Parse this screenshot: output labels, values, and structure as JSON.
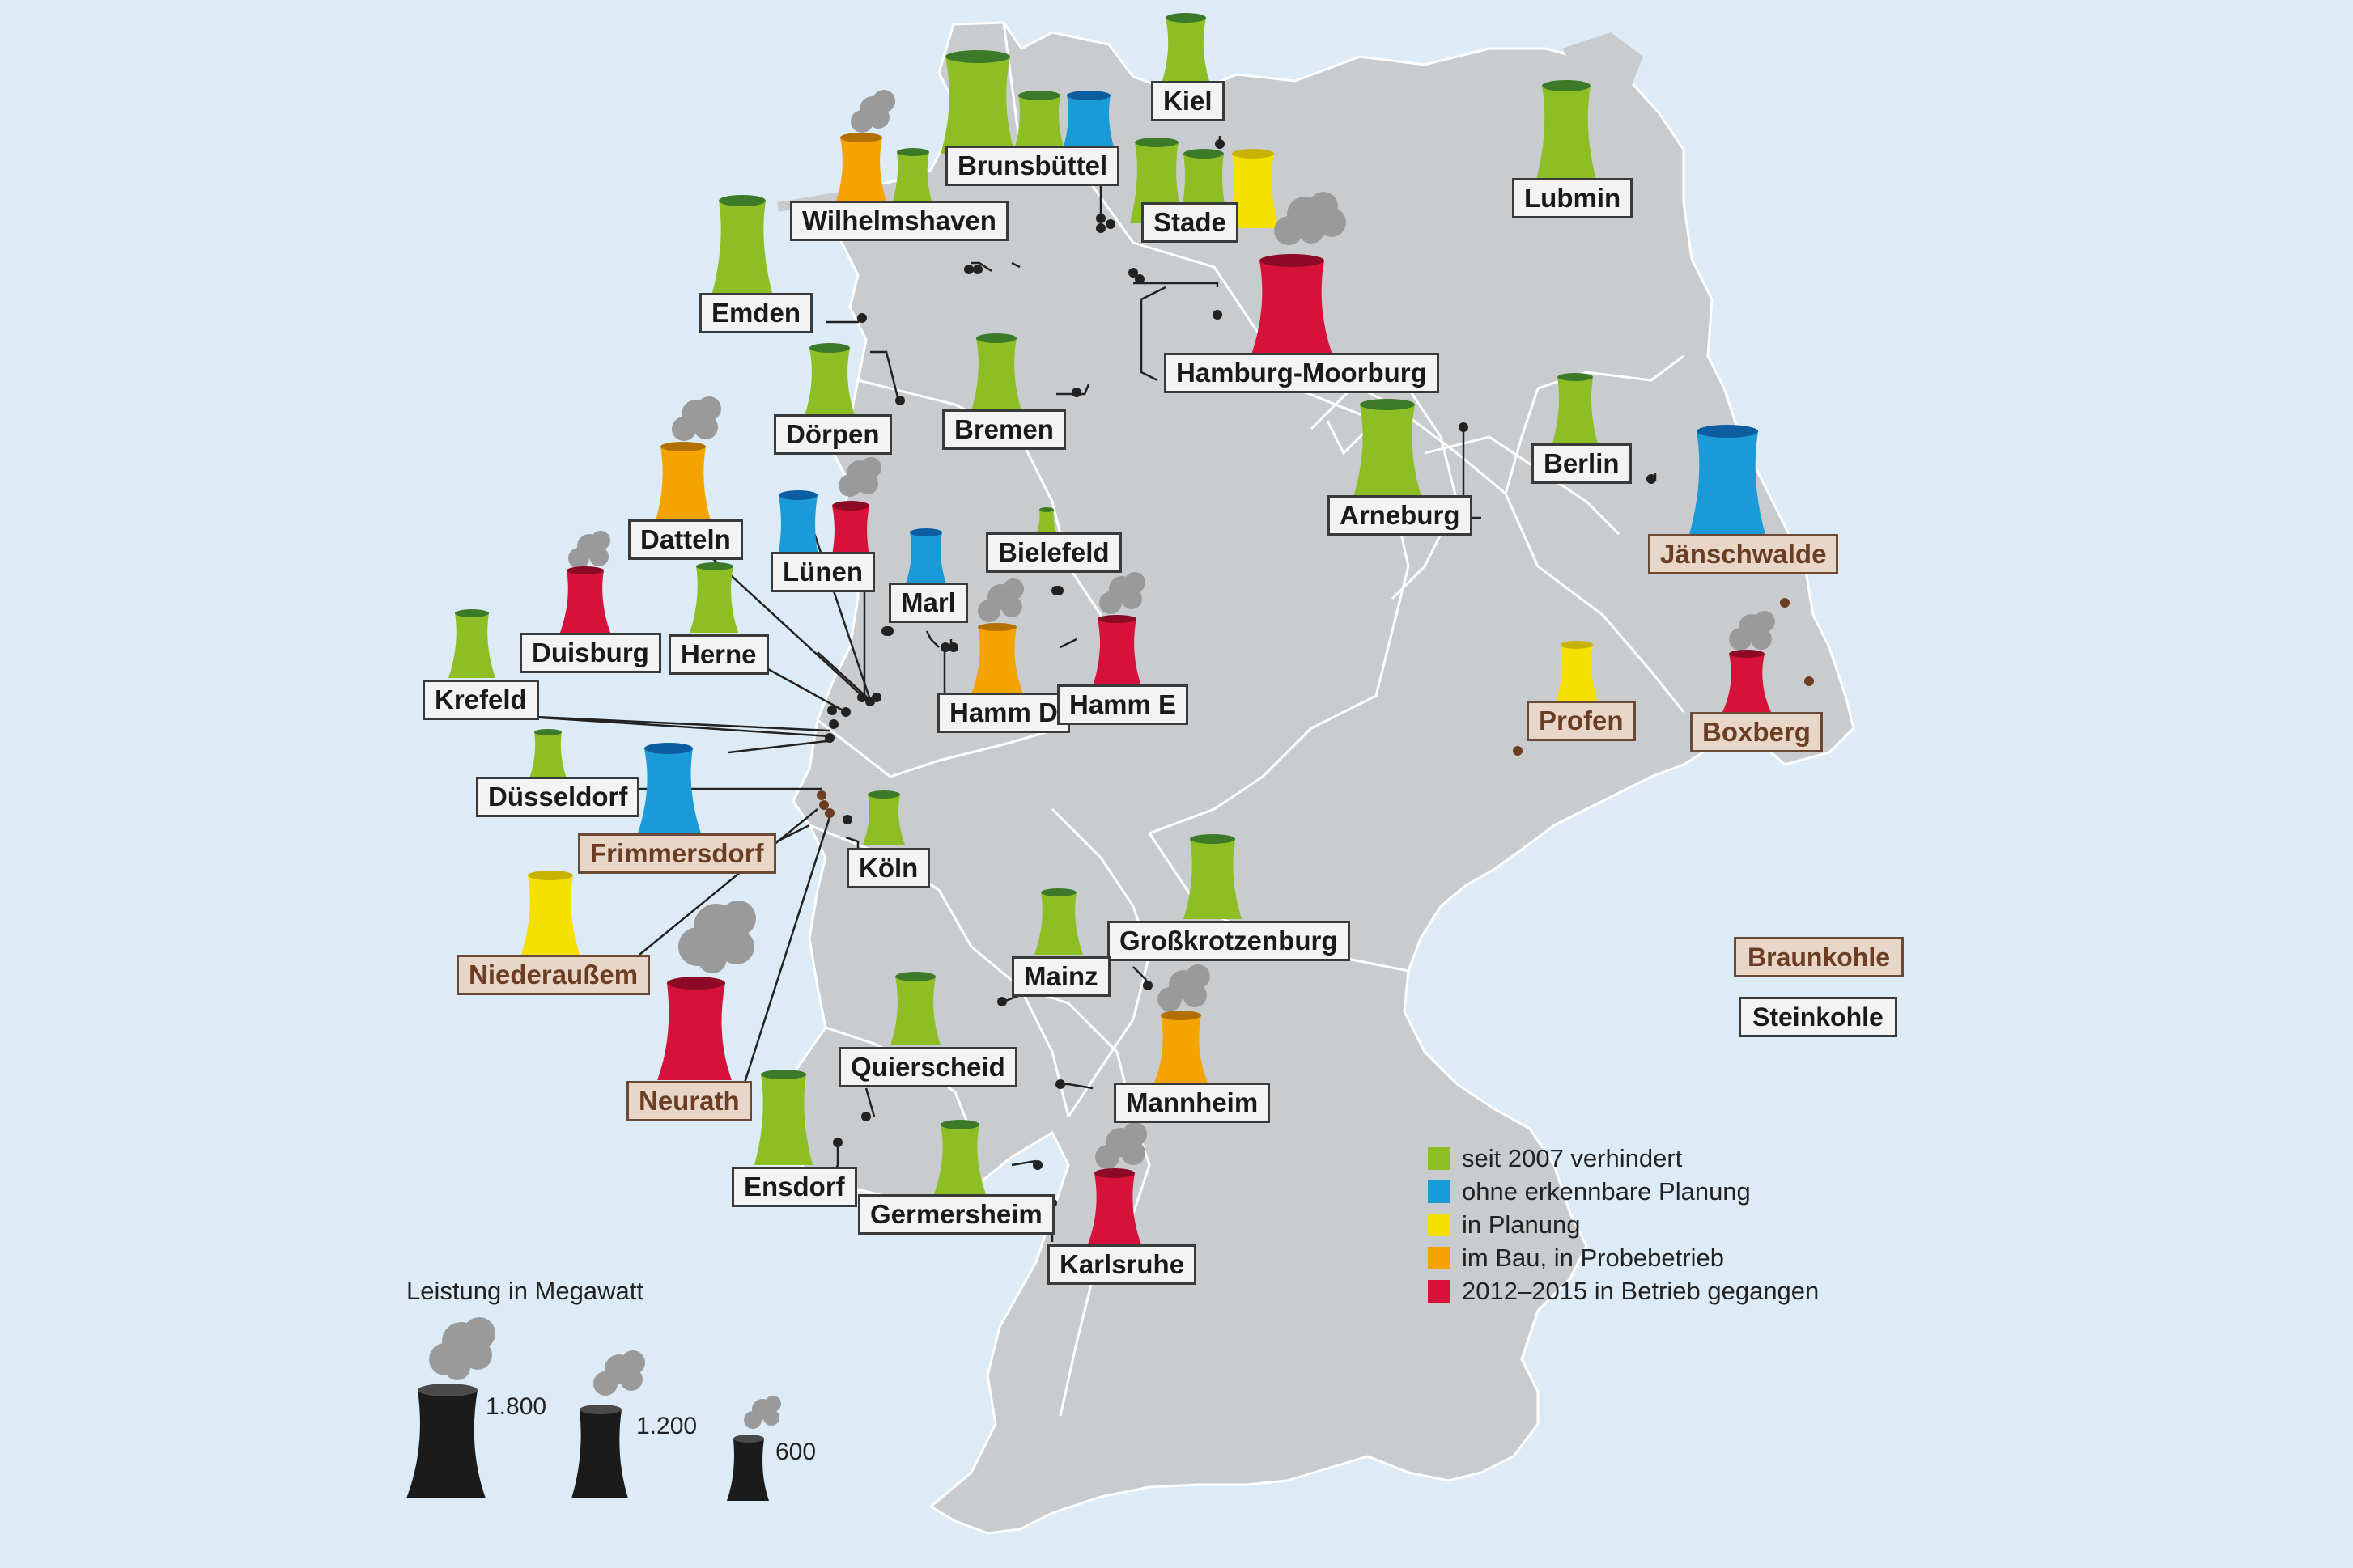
{
  "colors": {
    "background": "#dcebf6",
    "land": "#c9cccf",
    "border": "#ffffff",
    "green": "#8dbe23",
    "blue": "#1a9ad6",
    "yellow": "#f6e000",
    "orange": "#f4a300",
    "red": "#d6123a",
    "smoke": "#9a9a9a",
    "black": "#1b1b1b"
  },
  "plants": [
    {
      "name": "Kiel",
      "type": "steinkohle",
      "status": "green"
    },
    {
      "name": "Brunsbüttel",
      "type": "steinkohle",
      "status": "green"
    },
    {
      "name": "Wilhelmshaven",
      "type": "steinkohle",
      "status": "orange"
    },
    {
      "name": "Stade",
      "type": "steinkohle",
      "status": "green"
    },
    {
      "name": "Lubmin",
      "type": "steinkohle",
      "status": "green"
    },
    {
      "name": "Emden",
      "type": "steinkohle",
      "status": "green"
    },
    {
      "name": "Hamburg-Moorburg",
      "type": "steinkohle",
      "status": "red"
    },
    {
      "name": "Dörpen",
      "type": "steinkohle",
      "status": "green"
    },
    {
      "name": "Bremen",
      "type": "steinkohle",
      "status": "green"
    },
    {
      "name": "Berlin",
      "type": "steinkohle",
      "status": "green"
    },
    {
      "name": "Arneburg",
      "type": "steinkohle",
      "status": "green"
    },
    {
      "name": "Datteln",
      "type": "steinkohle",
      "status": "orange"
    },
    {
      "name": "Lünen",
      "type": "steinkohle",
      "status": "red"
    },
    {
      "name": "Jänschwalde",
      "type": "braunkohle",
      "status": "blue"
    },
    {
      "name": "Bielefeld",
      "type": "steinkohle",
      "status": "green"
    },
    {
      "name": "Marl",
      "type": "steinkohle",
      "status": "blue"
    },
    {
      "name": "Duisburg",
      "type": "steinkohle",
      "status": "red"
    },
    {
      "name": "Herne",
      "type": "steinkohle",
      "status": "green"
    },
    {
      "name": "Hamm D",
      "type": "steinkohle",
      "status": "orange"
    },
    {
      "name": "Hamm E",
      "type": "steinkohle",
      "status": "red"
    },
    {
      "name": "Krefeld",
      "type": "steinkohle",
      "status": "green"
    },
    {
      "name": "Profen",
      "type": "braunkohle",
      "status": "yellow"
    },
    {
      "name": "Boxberg",
      "type": "braunkohle",
      "status": "red"
    },
    {
      "name": "Düsseldorf",
      "type": "steinkohle",
      "status": "green"
    },
    {
      "name": "Frimmersdorf",
      "type": "braunkohle",
      "status": "blue"
    },
    {
      "name": "Köln",
      "type": "steinkohle",
      "status": "green"
    },
    {
      "name": "Großkrotzenburg",
      "type": "steinkohle",
      "status": "green"
    },
    {
      "name": "Niederaußem",
      "type": "braunkohle",
      "status": "yellow"
    },
    {
      "name": "Mainz",
      "type": "steinkohle",
      "status": "green"
    },
    {
      "name": "Neurath",
      "type": "braunkohle",
      "status": "red"
    },
    {
      "name": "Quierscheid",
      "type": "steinkohle",
      "status": "green"
    },
    {
      "name": "Mannheim",
      "type": "steinkohle",
      "status": "orange"
    },
    {
      "name": "Ensdorf",
      "type": "steinkohle",
      "status": "green"
    },
    {
      "name": "Germersheim",
      "type": "steinkohle",
      "status": "green"
    },
    {
      "name": "Karlsruhe",
      "type": "steinkohle",
      "status": "red"
    }
  ],
  "fuel_key": {
    "braunkohle": "Braunkohle",
    "steinkohle": "Steinkohle"
  },
  "legend": [
    {
      "label": "seit 2007 verhindert",
      "color": "#8dbe23"
    },
    {
      "label": "ohne erkennbare Planung",
      "color": "#1a9ad6"
    },
    {
      "label": "in Planung",
      "color": "#f6e000"
    },
    {
      "label": "im Bau, in Probebetrieb",
      "color": "#f4a300"
    },
    {
      "label": "2012–2015 in Betrieb gegangen",
      "color": "#d6123a"
    }
  ],
  "size_legend": {
    "title": "Leistung in Megawatt",
    "sizes": [
      "1.800",
      "1.200",
      "600"
    ]
  }
}
